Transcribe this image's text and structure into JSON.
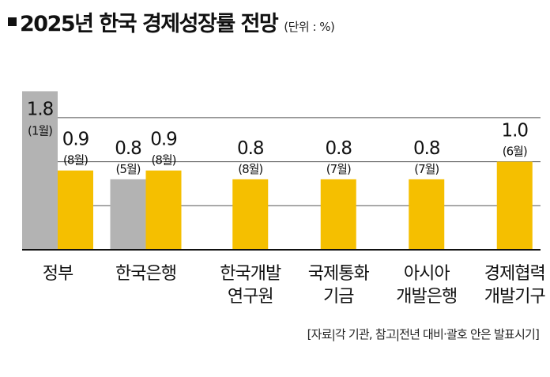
{
  "title": "2025년 한국 경제성장률 전망",
  "unit_note": "(단위 : %)",
  "source_note": "[자료|각 기관, 참고|전년 대비·괄호 안은 발표시기]",
  "colors": {
    "previous": "#b3b3b3",
    "latest": "#f5bf00",
    "grid": "#555555",
    "baseline": "#111111"
  },
  "chart_data": {
    "type": "bar",
    "title": "2025년 한국 경제성장률 전망",
    "ylabel": "",
    "xlabel": "",
    "unit": "%",
    "ylim": [
      0,
      2.1
    ],
    "grid": true,
    "categories": [
      "정부",
      "한국은행",
      "한국개발\n연구원",
      "국제통화\n기금",
      "아시아\n개발은행",
      "경제협력\n개발기구"
    ],
    "series": [
      {
        "values": [
          1.8,
          0.8,
          null,
          null,
          null,
          null
        ],
        "labels": [
          "1.8",
          "0.8",
          "",
          "",
          "",
          ""
        ],
        "period_labels": [
          "(1월)",
          "(5월)",
          "",
          "",
          "",
          ""
        ]
      },
      {
        "values": [
          0.9,
          0.9,
          0.8,
          0.8,
          0.8,
          1.0
        ],
        "labels": [
          "0.9",
          "0.9",
          "0.8",
          "0.8",
          "0.8",
          "1.0"
        ],
        "period_labels": [
          "(8월)",
          "(8월)",
          "(8월)",
          "(7월)",
          "(7월)",
          "(6월)"
        ]
      }
    ]
  }
}
